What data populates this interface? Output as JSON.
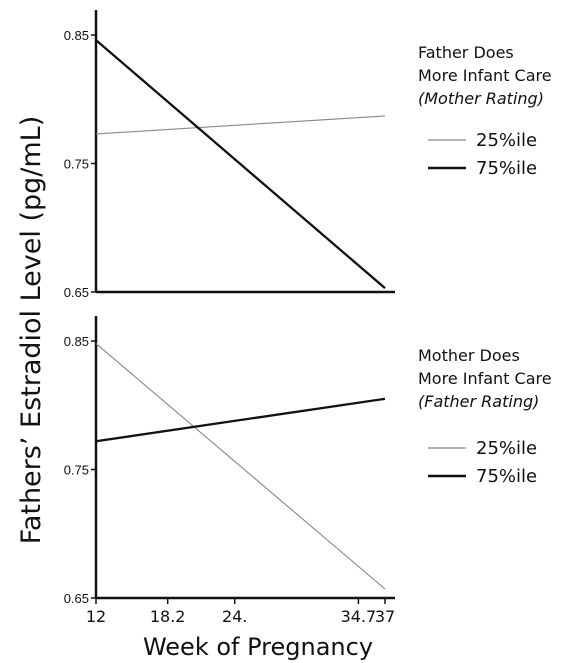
{
  "chart_data": {
    "type": "line",
    "shared": {
      "ylabel": "Fathers’ Estradiol Level (pg/mL)",
      "xlabel": "Week of Pregnancy",
      "x_ticks": [
        "12",
        "18.2",
        "24.",
        "34.7",
        "37"
      ],
      "x_tick_values": [
        12,
        18.2,
        24,
        34.7,
        37
      ],
      "xlim": [
        12,
        37
      ],
      "y_ticks": [
        "0.65",
        "0.75",
        "0.85"
      ],
      "y_tick_values": [
        0.65,
        0.75,
        0.85
      ],
      "ylim": [
        0.65,
        0.85
      ],
      "grid": false,
      "legend_placement": "right"
    },
    "panels": [
      {
        "legend_title_lines": [
          "Father Does",
          "More Infant Care"
        ],
        "legend_subtitle": "(Mother Rating)",
        "series": [
          {
            "name": "25%ile",
            "x": [
              12,
              37
            ],
            "y": [
              0.773,
              0.787
            ],
            "color": "#888888",
            "weight": "thin"
          },
          {
            "name": "75%ile",
            "x": [
              12,
              37
            ],
            "y": [
              0.846,
              0.653
            ],
            "color": "#111111",
            "weight": "thick"
          }
        ]
      },
      {
        "legend_title_lines": [
          "Mother Does",
          "More Infant Care"
        ],
        "legend_subtitle": "(Father Rating)",
        "series": [
          {
            "name": "25%ile",
            "x": [
              12,
              37
            ],
            "y": [
              0.848,
              0.657
            ],
            "color": "#888888",
            "weight": "thin"
          },
          {
            "name": "75%ile",
            "x": [
              12,
              37
            ],
            "y": [
              0.772,
              0.805
            ],
            "color": "#111111",
            "weight": "thick"
          }
        ]
      }
    ]
  }
}
